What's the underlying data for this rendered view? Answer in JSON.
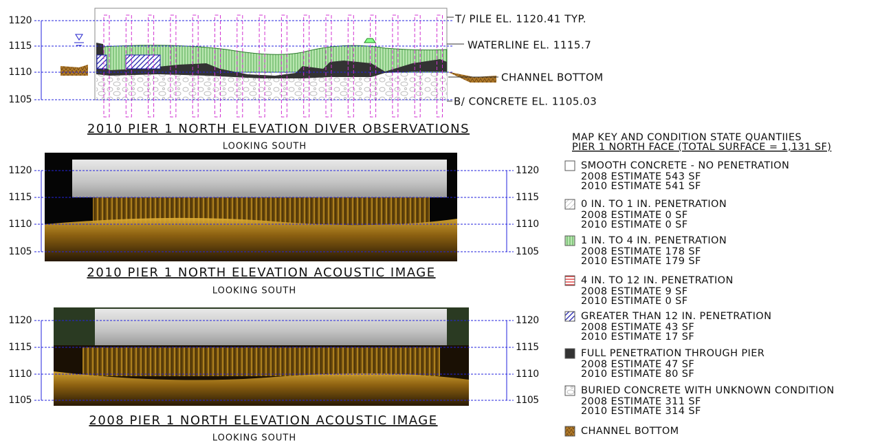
{
  "top_panel": {
    "title": "2010 PIER 1 NORTH ELEVATION DIVER OBSERVATIONS",
    "subtitle": "LOOKING SOUTH",
    "elevations": [
      1120,
      1115,
      1110,
      1105
    ],
    "callouts": [
      "T/ PILE EL. 1120.41 TYP.",
      "WATERLINE EL. 1115.7",
      "CHANNEL BOTTOM",
      "B/ CONCRETE EL. 1105.03"
    ]
  },
  "acoustic_2010": {
    "title": "2010 PIER 1 NORTH ELEVATION ACOUSTIC IMAGE",
    "subtitle": "LOOKING SOUTH",
    "left_elevations": [
      1120,
      1115,
      1110,
      1105
    ],
    "right_elevations": [
      1120,
      1115,
      1110,
      1105
    ]
  },
  "acoustic_2008": {
    "title": "2008 PIER 1 NORTH ELEVATION ACOUSTIC IMAGE",
    "subtitle": "LOOKING SOUTH",
    "left_elevations": [
      1120,
      1115,
      1110,
      1105
    ],
    "right_elevations": [
      1120,
      1115,
      1110,
      1105
    ]
  },
  "key": {
    "title": [
      "MAP KEY AND CONDITION STATE QUANTIIES",
      "PIER 1 NORTH FACE (TOTAL SURFACE = 1,131 SF)"
    ],
    "items": [
      {
        "label": "SMOOTH CONCRETE - NO PENETRATION",
        "lines": [
          "2008 ESTIMATE 543 SF",
          "2010 ESTIMATE 541 SF"
        ]
      },
      {
        "label": "0 IN. TO 1 IN. PENETRATION",
        "lines": [
          "2008 ESTIMATE 0 SF",
          "2010 ESTIMATE 0 SF"
        ]
      },
      {
        "label": "1 IN. TO 4 IN. PENETRATION",
        "lines": [
          "2008 ESTIMATE 178 SF",
          "2010 ESTIMATE 179 SF"
        ]
      },
      {
        "label": "4 IN. TO 12 IN. PENETRATION",
        "lines": [
          "2008 ESTIMATE 9 SF",
          "2010 ESTIMATE 0 SF"
        ]
      },
      {
        "label": "GREATER THAN 12 IN. PENETRATION",
        "lines": [
          "2008 ESTIMATE 43 SF",
          "2010 ESTIMATE 17 SF"
        ]
      },
      {
        "label": "FULL PENETRATION THROUGH PIER",
        "lines": [
          "2008 ESTIMATE 47 SF",
          "2010 ESTIMATE 80 SF"
        ]
      },
      {
        "label": "BURIED CONCRETE WITH UNKNOWN CONDITION",
        "lines": [
          "2008 ESTIMATE 311 SF",
          "2010 ESTIMATE 314 SF"
        ]
      },
      {
        "label": "CHANNEL BOTTOM",
        "lines": []
      }
    ]
  }
}
